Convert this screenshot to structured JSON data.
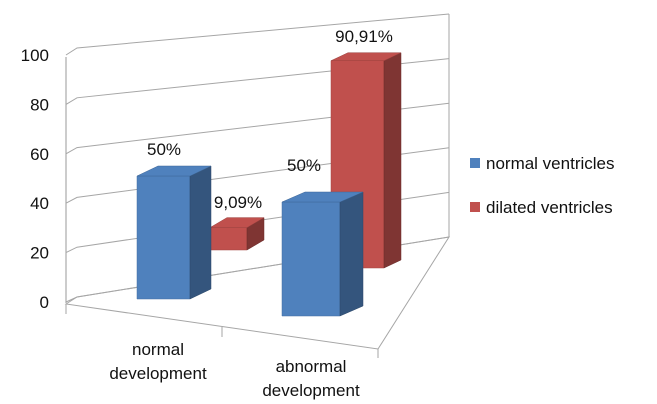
{
  "chart_data": {
    "type": "bar",
    "subtype": "3d-clustered-column",
    "title": "",
    "xlabel": "",
    "ylabel": "",
    "ylim": [
      0,
      100
    ],
    "yticks": [
      "0",
      "20",
      "40",
      "60",
      "80",
      "100"
    ],
    "grid": true,
    "legend_position": "right",
    "categories": [
      "normal development",
      "abnormal development"
    ],
    "category_lines": [
      [
        "normal",
        "development"
      ],
      [
        "abnormal",
        "development"
      ]
    ],
    "series": [
      {
        "name": "normal ventricles",
        "values": [
          50,
          50
        ],
        "labels": [
          "50%",
          "50%"
        ],
        "color": "#4F81BD"
      },
      {
        "name": "dilated ventricles",
        "values": [
          9.09,
          90.91
        ],
        "labels": [
          "9,09%",
          "90,91%"
        ],
        "color": "#C0504D"
      }
    ]
  }
}
